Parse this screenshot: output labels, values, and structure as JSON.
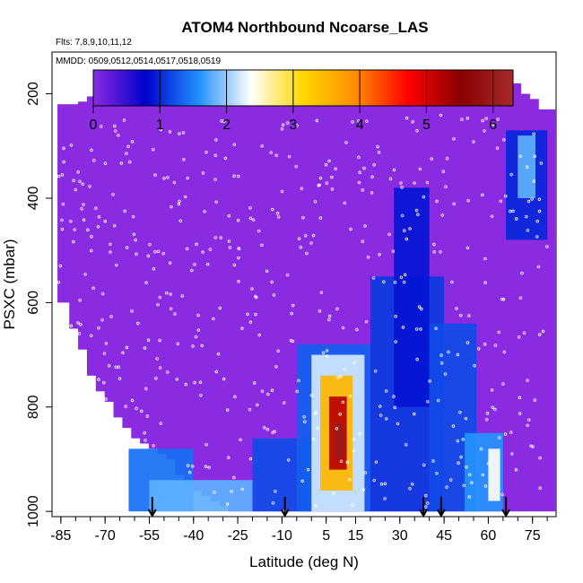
{
  "chart_data": {
    "type": "heatmap",
    "title": "ATOM4 Northbound Ncoarse_LAS",
    "subtitle_flights": "Flts: 7,8,9,10,11,12",
    "subtitle_dates": "MMDD: 0509,0512,0514,0517,0518,0519",
    "xlabel": "Latitude (deg N)",
    "ylabel": "PSXC (mbar)",
    "xlim": [
      -88,
      83
    ],
    "ylim": [
      1010,
      120
    ],
    "x_tick_labels": [
      "-85",
      "-70",
      "-55",
      "-40",
      "-25",
      "-10",
      "5",
      "15",
      "30",
      "45",
      "60",
      "75"
    ],
    "x_tick_values": [
      -85,
      -70,
      -55,
      -40,
      -25,
      -10,
      5,
      15,
      30,
      45,
      60,
      75
    ],
    "y_tick_labels": [
      "200",
      "400",
      "600",
      "800",
      "1000"
    ],
    "y_tick_values": [
      200,
      400,
      600,
      800,
      1000
    ],
    "colorbar": {
      "min": 0,
      "max": 6.3,
      "tick_labels": [
        "0",
        "1",
        "2",
        "3",
        "4",
        "5",
        "6"
      ],
      "tick_values": [
        0,
        1,
        2,
        3,
        4,
        5,
        6
      ],
      "colors": [
        "#8a2be2",
        "#0000cd",
        "#1e90ff",
        "#ffffff",
        "#ffd700",
        "#ff8c00",
        "#ff0000",
        "#8b0000",
        "#a52a2a"
      ]
    },
    "arrow_latitudes": [
      -54,
      -9,
      38,
      44,
      66
    ],
    "profile_latitudes": [
      -86,
      -82,
      -79,
      -76,
      -73,
      -70,
      -67,
      -64,
      -61,
      -58,
      -55,
      -52,
      -49,
      -46,
      -43,
      -40,
      -37,
      -34,
      -31,
      -28,
      -25,
      -22,
      -19,
      -16,
      -13,
      -10,
      -7,
      -4,
      -1,
      2,
      5,
      8,
      11,
      14,
      17,
      20,
      23,
      26,
      29,
      32,
      35,
      38,
      41,
      44,
      47,
      50,
      53,
      56,
      59,
      62,
      65,
      68,
      71,
      74,
      77,
      80
    ],
    "profile_tops_mbar": [
      220,
      220,
      215,
      205,
      190,
      190,
      190,
      190,
      190,
      195,
      200,
      195,
      195,
      195,
      190,
      190,
      190,
      190,
      190,
      190,
      190,
      190,
      190,
      190,
      190,
      190,
      190,
      190,
      190,
      190,
      190,
      190,
      190,
      190,
      190,
      190,
      190,
      185,
      180,
      175,
      175,
      175,
      175,
      175,
      175,
      175,
      175,
      175,
      175,
      180,
      180,
      180,
      200,
      210,
      230,
      230
    ],
    "profile_bottoms_mbar": [
      600,
      650,
      690,
      740,
      770,
      790,
      820,
      840,
      860,
      870,
      880,
      890,
      900,
      930,
      950,
      960,
      970,
      980,
      990,
      1000,
      1000,
      1000,
      1000,
      1000,
      1000,
      1000,
      1000,
      1000,
      1000,
      1000,
      1000,
      1000,
      1000,
      1000,
      1000,
      1000,
      1000,
      1000,
      1000,
      1000,
      1000,
      1000,
      1000,
      1000,
      1000,
      1000,
      1000,
      1000,
      1000,
      1000,
      1000,
      1000,
      1000,
      1000,
      1000,
      1000
    ],
    "enhanced_regions": [
      {
        "lat": [
          -62,
          -40
        ],
        "p": [
          880,
          1000
        ],
        "value": 1.4
      },
      {
        "lat": [
          -55,
          -20
        ],
        "p": [
          940,
          1000
        ],
        "value": 1.8
      },
      {
        "lat": [
          -20,
          0
        ],
        "p": [
          860,
          1000
        ],
        "value": 1.2
      },
      {
        "lat": [
          -5,
          20
        ],
        "p": [
          680,
          1000
        ],
        "value": 1.3
      },
      {
        "lat": [
          0,
          18
        ],
        "p": [
          700,
          1000
        ],
        "value": 2.2
      },
      {
        "lat": [
          3,
          14
        ],
        "p": [
          740,
          960
        ],
        "value": 3.5
      },
      {
        "lat": [
          6,
          12
        ],
        "p": [
          780,
          920
        ],
        "value": 5.2
      },
      {
        "lat": [
          8,
          11
        ],
        "p": [
          830,
          900
        ],
        "value": 6.0
      },
      {
        "lat": [
          20,
          45
        ],
        "p": [
          550,
          1000
        ],
        "value": 1.1
      },
      {
        "lat": [
          28,
          40
        ],
        "p": [
          380,
          800
        ],
        "value": 0.9
      },
      {
        "lat": [
          40,
          56
        ],
        "p": [
          640,
          1000
        ],
        "value": 1.2
      },
      {
        "lat": [
          52,
          65
        ],
        "p": [
          850,
          1000
        ],
        "value": 1.6
      },
      {
        "lat": [
          60,
          64
        ],
        "p": [
          880,
          980
        ],
        "value": 2.4
      },
      {
        "lat": [
          66,
          80
        ],
        "p": [
          270,
          480
        ],
        "value": 1.0
      },
      {
        "lat": [
          70,
          76
        ],
        "p": [
          280,
          400
        ],
        "value": 1.8
      }
    ]
  }
}
